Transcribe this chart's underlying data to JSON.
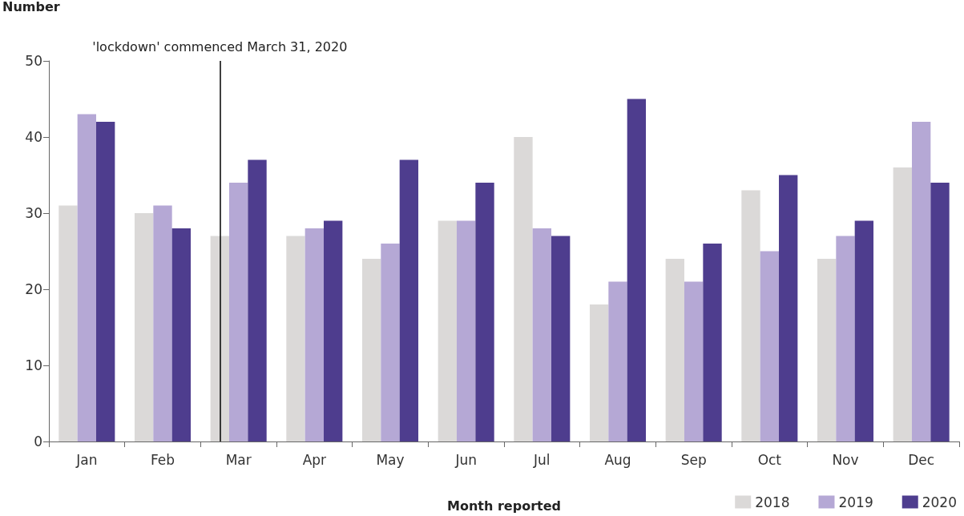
{
  "chart_data": {
    "type": "bar",
    "ylabel": "Number",
    "xlabel": "Month reported",
    "categories": [
      "Jan",
      "Feb",
      "Mar",
      "Apr",
      "May",
      "Jun",
      "Jul",
      "Aug",
      "Sep",
      "Oct",
      "Nov",
      "Dec"
    ],
    "series": [
      {
        "name": "2018",
        "color": "#dbd9d8",
        "values": [
          31,
          30,
          27,
          27,
          24,
          29,
          40,
          18,
          24,
          33,
          24,
          36
        ]
      },
      {
        "name": "2019",
        "color": "#b5a8d5",
        "values": [
          43,
          31,
          34,
          28,
          26,
          29,
          28,
          21,
          21,
          25,
          27,
          42
        ]
      },
      {
        "name": "2020",
        "color": "#4e3d8e",
        "values": [
          42,
          28,
          37,
          29,
          37,
          34,
          27,
          45,
          26,
          35,
          29,
          34
        ]
      }
    ],
    "ylim": [
      0,
      50
    ],
    "yticks": [
      0,
      10,
      20,
      30,
      40,
      50
    ],
    "grid": false,
    "legend": "bottom right",
    "ref_lines": [
      {
        "axis": "x",
        "value": "Mar",
        "label": "'lockdown' commenced March 31, 2020",
        "color": "#000000"
      }
    ]
  }
}
